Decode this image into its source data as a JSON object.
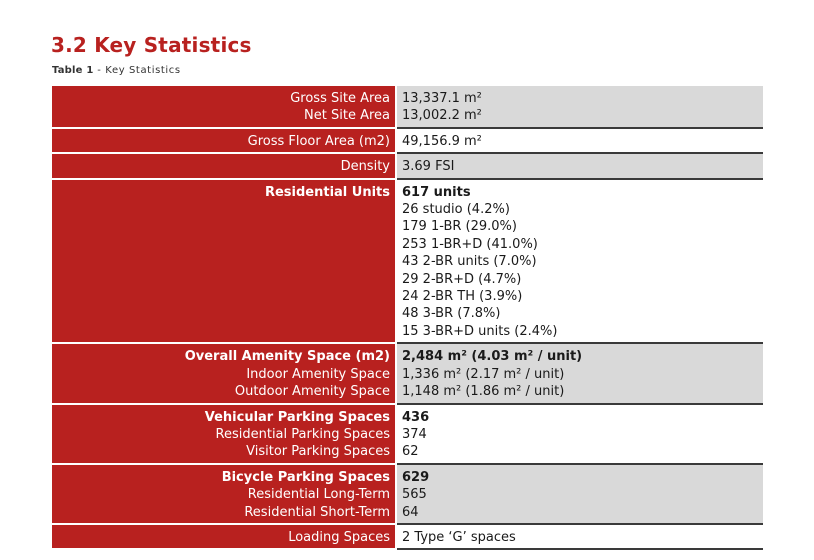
{
  "heading": {
    "title": "3.2 Key Statistics",
    "caption_prefix": "Table 1",
    "caption_sep": " - ",
    "caption_text": "Key Statistics"
  },
  "rows": [
    {
      "labels": [
        "Gross Site Area",
        "Net Site Area"
      ],
      "values": [
        "13,337.1 m²",
        "13,002.2 m²"
      ]
    },
    {
      "labels": [
        "Gross Floor Area (m2)"
      ],
      "values": [
        "49,156.9 m²"
      ]
    },
    {
      "labels": [
        "Density"
      ],
      "values": [
        "3.69 FSI"
      ]
    },
    {
      "labels": [
        "Residential Units"
      ],
      "values": [
        "617 units",
        "26 studio (4.2%)",
        "179 1-BR (29.0%)",
        "253 1-BR+D (41.0%)",
        "43 2-BR units (7.0%)",
        "29 2-BR+D (4.7%)",
        "24 2-BR TH (3.9%)",
        "48 3-BR (7.8%)",
        "15 3-BR+D units (2.4%)"
      ]
    },
    {
      "labels": [
        "Overall Amenity Space (m2)",
        "Indoor Amenity Space",
        "Outdoor Amenity Space"
      ],
      "values": [
        "2,484 m² (4.03 m² / unit)",
        "1,336 m² (2.17 m² / unit)",
        "1,148 m² (1.86 m² / unit)"
      ]
    },
    {
      "labels": [
        "Vehicular Parking Spaces",
        "Residential Parking Spaces",
        "Visitor Parking Spaces"
      ],
      "values": [
        "436",
        "374",
        "62"
      ]
    },
    {
      "labels": [
        "Bicycle Parking Spaces",
        "Residential Long-Term",
        "Residential Short-Term"
      ],
      "values": [
        "629",
        "565",
        "64"
      ]
    },
    {
      "labels": [
        "Loading Spaces"
      ],
      "values": [
        "2 Type ‘G’ spaces"
      ]
    }
  ],
  "colors": {
    "accent": "#b8211f",
    "row_grey": "#d9d9d9",
    "row_white": "#ffffff"
  }
}
